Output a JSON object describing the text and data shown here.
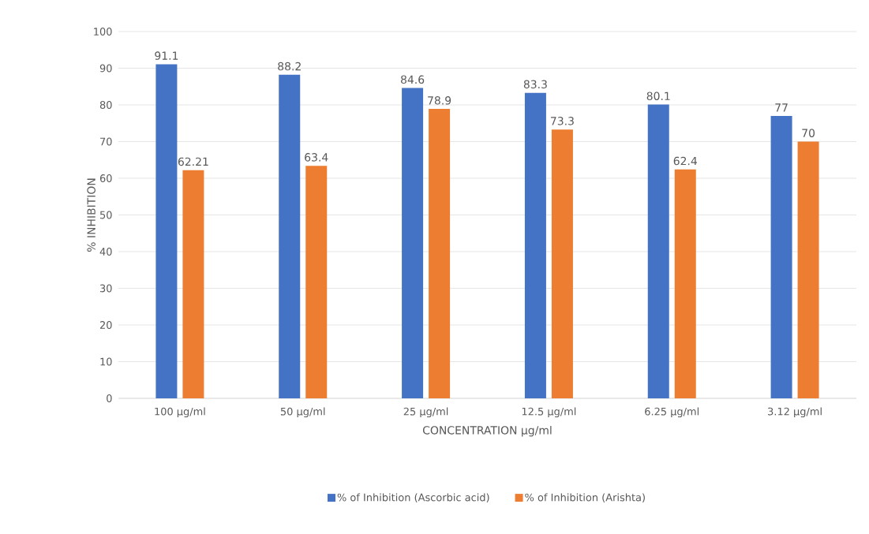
{
  "chart_data": {
    "type": "bar",
    "xlabel": "CONCENTRATION µg/ml",
    "ylabel": "% INHIBITION",
    "categories": [
      "100 µg/ml",
      "50 µg/ml",
      "25 µg/ml",
      "12.5 µg/ml",
      "6.25 µg/ml",
      "3.12 µg/ml"
    ],
    "series": [
      {
        "name": "% of Inhibition (Ascorbic acid)",
        "color": "#4472c4",
        "values": [
          91.1,
          88.2,
          84.6,
          83.3,
          80.1,
          77
        ]
      },
      {
        "name": "% of Inhibition (Arishta)",
        "color": "#ed7d31",
        "values": [
          62.21,
          63.4,
          78.9,
          73.3,
          62.4,
          70
        ]
      }
    ],
    "ylim": [
      0,
      100
    ],
    "yticks": [
      0,
      10,
      20,
      30,
      40,
      50,
      60,
      70,
      80,
      90,
      100
    ],
    "grid": "y",
    "legend": "bottom",
    "data_labels": true
  }
}
